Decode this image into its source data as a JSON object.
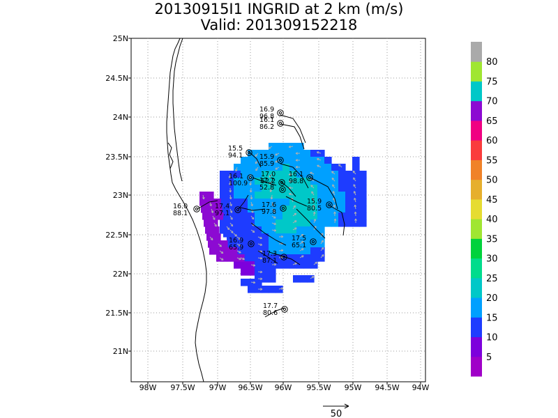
{
  "title": {
    "line1": "20130915I1 INGRID at 2 km (m/s)",
    "line2": "Valid: 201309152218"
  },
  "lon_ticks": [
    "98W",
    "97.5W",
    "97W",
    "96.5W",
    "96W",
    "95.5W",
    "95W",
    "94.5W",
    "94W"
  ],
  "lat_ticks": [
    "25N",
    "24.5N",
    "24N",
    "23.5N",
    "23N",
    "22.5N",
    "22N",
    "21.5N",
    "21N"
  ],
  "colorbar": {
    "labels": [
      "5",
      "10",
      "15",
      "20",
      "25",
      "30",
      "35",
      "40",
      "45",
      "50",
      "55",
      "60",
      "65",
      "70",
      "75",
      "80"
    ],
    "colors": [
      "#a000c8",
      "#7d00dc",
      "#1e3cff",
      "#00a0ff",
      "#00c8c8",
      "#00dc8c",
      "#00d23c",
      "#a0e632",
      "#e6dc32",
      "#e6af2d",
      "#f08228",
      "#fa3c3c",
      "#f00082",
      "#8c0ad2",
      "#00c8c8",
      "#a0e632",
      "#aaaaaa"
    ]
  },
  "vector_key": {
    "label": "50"
  },
  "stations": [
    {
      "speed": "16.9",
      "pres": "96.8"
    },
    {
      "speed": "16.1",
      "pres": "86.2"
    },
    {
      "speed": "15.5",
      "pres": "94.1"
    },
    {
      "speed": "15.9",
      "pres": "85.9"
    },
    {
      "speed": "16.1",
      "pres": "100.9"
    },
    {
      "speed": "17.0",
      "pres": "52.2"
    },
    {
      "speed": "16.1",
      "pres": "98.8"
    },
    {
      "speed": "17.7",
      "pres": "52.8"
    },
    {
      "speed": "16.0",
      "pres": "88.1"
    },
    {
      "speed": "17.4",
      "pres": "97.1"
    },
    {
      "speed": "17.6",
      "pres": "97.8"
    },
    {
      "speed": "15.9",
      "pres": "80.5"
    },
    {
      "speed": "16.9",
      "pres": "65.9"
    },
    {
      "speed": "17.5",
      "pres": "65.1"
    },
    {
      "speed": "17.3",
      "pres": "87.1"
    },
    {
      "speed": "17.7",
      "pres": "80.6"
    }
  ]
}
